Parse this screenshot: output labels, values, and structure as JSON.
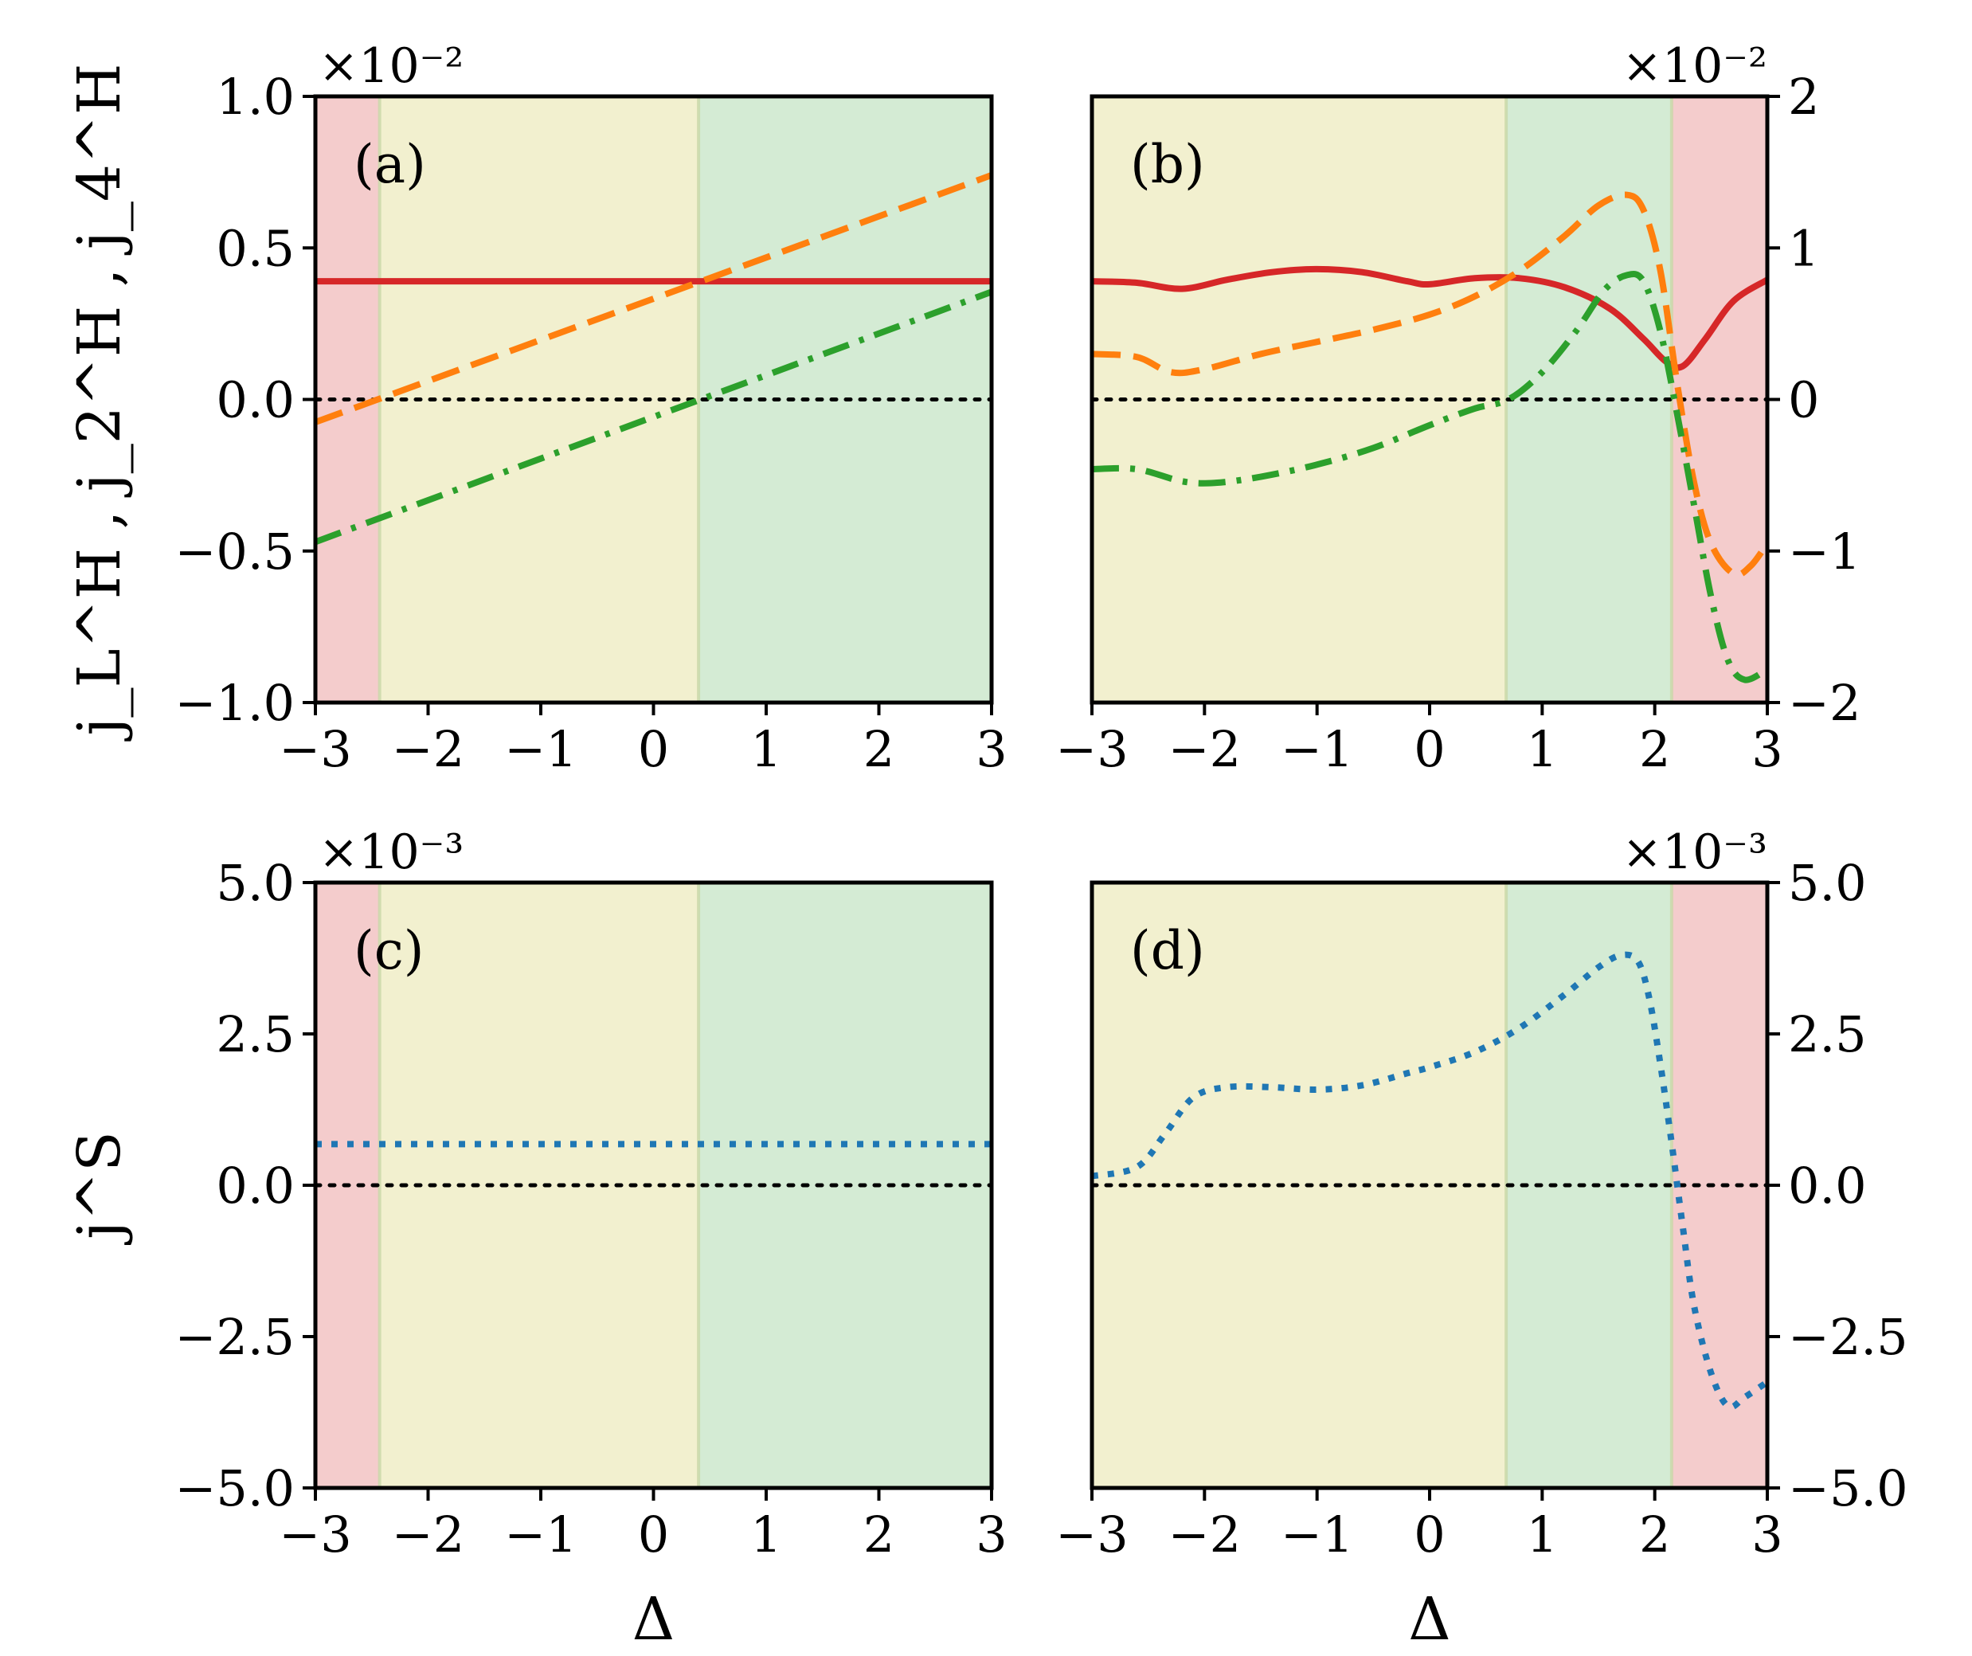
{
  "chart_data": [
    {
      "panel": "(a)",
      "type": "line",
      "exponent_label": "×10⁻²",
      "ylabel": "j_L^H , j_2^H , j_4^H",
      "xlabel": "",
      "xlim": [
        -3,
        3
      ],
      "ylim": [
        -1.0,
        1.0
      ],
      "x_ticks": [
        "−3",
        "−2",
        "−1",
        "0",
        "1",
        "2",
        "3"
      ],
      "y_ticks": [
        "−1.0",
        "−0.5",
        "0.0",
        "0.5",
        "1.0"
      ],
      "y_ticks_side": "left",
      "regions": [
        {
          "from": -3.0,
          "to": -2.43,
          "color": "#f4cccc"
        },
        {
          "from": -2.43,
          "to": 0.4,
          "color": "#f2f0cf"
        },
        {
          "from": 0.4,
          "to": 3.0,
          "color": "#d4ebd4"
        }
      ],
      "zero_line": true,
      "series": [
        {
          "name": "j_L^H",
          "color": "#d62728",
          "style": "solid",
          "x": [
            -3,
            3
          ],
          "values": [
            0.39,
            0.39
          ]
        },
        {
          "name": "j_2^H",
          "color": "#ff7f0e",
          "style": "dashed",
          "x": [
            -3,
            3
          ],
          "values": [
            -0.075,
            0.74
          ]
        },
        {
          "name": "j_4^H",
          "color": "#2ca02c",
          "style": "dashdot",
          "x": [
            -3,
            3
          ],
          "values": [
            -0.47,
            0.355
          ]
        }
      ]
    },
    {
      "panel": "(b)",
      "type": "line",
      "exponent_label": "×10⁻²",
      "ylabel": "",
      "xlabel": "",
      "xlim": [
        -3,
        3
      ],
      "ylim": [
        -2,
        2
      ],
      "x_ticks": [
        "−3",
        "−2",
        "−1",
        "0",
        "1",
        "2",
        "3"
      ],
      "y_ticks": [
        "−2",
        "−1",
        "0",
        "1",
        "2"
      ],
      "y_ticks_side": "right",
      "regions": [
        {
          "from": -3.0,
          "to": 0.68,
          "color": "#f2f0cf"
        },
        {
          "from": 0.68,
          "to": 2.15,
          "color": "#d4ebd4"
        },
        {
          "from": 2.15,
          "to": 3.0,
          "color": "#f4cccc"
        }
      ],
      "zero_line": true,
      "series": [
        {
          "name": "j_L^H",
          "color": "#d62728",
          "style": "solid",
          "x": [
            -3,
            -2.6,
            -2.2,
            -1.8,
            -1.4,
            -1.0,
            -0.6,
            -0.2,
            0.0,
            0.4,
            0.8,
            1.2,
            1.6,
            1.9,
            2.1,
            2.25,
            2.45,
            2.7,
            3.0
          ],
          "values": [
            0.78,
            0.77,
            0.73,
            0.79,
            0.84,
            0.86,
            0.84,
            0.78,
            0.76,
            0.8,
            0.8,
            0.74,
            0.6,
            0.4,
            0.25,
            0.22,
            0.4,
            0.65,
            0.79
          ]
        },
        {
          "name": "j_2^H",
          "color": "#ff7f0e",
          "style": "dashed",
          "x": [
            -3,
            -2.6,
            -2.3,
            -2.0,
            -1.5,
            -1.0,
            -0.5,
            0.0,
            0.4,
            0.8,
            1.2,
            1.5,
            1.75,
            1.9,
            2.05,
            2.2,
            2.35,
            2.5,
            2.7,
            2.85,
            3.0
          ],
          "values": [
            0.3,
            0.28,
            0.18,
            0.2,
            0.3,
            0.38,
            0.46,
            0.56,
            0.68,
            0.85,
            1.08,
            1.28,
            1.35,
            1.25,
            0.85,
            0.1,
            -0.55,
            -0.95,
            -1.15,
            -1.1,
            -0.95
          ]
        },
        {
          "name": "j_4^H",
          "color": "#2ca02c",
          "style": "dashdot",
          "x": [
            -3,
            -2.6,
            -2.2,
            -1.9,
            -1.5,
            -1.0,
            -0.5,
            0.0,
            0.4,
            0.7,
            1.0,
            1.3,
            1.55,
            1.75,
            1.9,
            2.05,
            2.2,
            2.35,
            2.5,
            2.65,
            2.8,
            3.0
          ],
          "values": [
            -0.46,
            -0.46,
            -0.54,
            -0.55,
            -0.51,
            -0.43,
            -0.32,
            -0.17,
            -0.06,
            0.0,
            0.18,
            0.45,
            0.72,
            0.82,
            0.78,
            0.45,
            -0.1,
            -0.7,
            -1.3,
            -1.72,
            -1.85,
            -1.78
          ]
        }
      ]
    },
    {
      "panel": "(c)",
      "type": "line",
      "exponent_label": "×10⁻³",
      "ylabel": "j^S",
      "xlabel": "Δ",
      "xlim": [
        -3,
        3
      ],
      "ylim": [
        -5.0,
        5.0
      ],
      "x_ticks": [
        "−3",
        "−2",
        "−1",
        "0",
        "1",
        "2",
        "3"
      ],
      "y_ticks": [
        "−5.0",
        "−2.5",
        "0.0",
        "2.5",
        "5.0"
      ],
      "y_ticks_side": "left",
      "regions": [
        {
          "from": -3.0,
          "to": -2.43,
          "color": "#f4cccc"
        },
        {
          "from": -2.43,
          "to": 0.4,
          "color": "#f2f0cf"
        },
        {
          "from": 0.4,
          "to": 3.0,
          "color": "#d4ebd4"
        }
      ],
      "zero_line": true,
      "series": [
        {
          "name": "j^S",
          "color": "#1f77b4",
          "style": "dotted",
          "x": [
            -3,
            3
          ],
          "values": [
            0.68,
            0.68
          ]
        }
      ]
    },
    {
      "panel": "(d)",
      "type": "line",
      "exponent_label": "×10⁻³",
      "ylabel": "",
      "xlabel": "Δ",
      "xlim": [
        -3,
        3
      ],
      "ylim": [
        -5.0,
        5.0
      ],
      "x_ticks": [
        "−3",
        "−2",
        "−1",
        "0",
        "1",
        "2",
        "3"
      ],
      "y_ticks": [
        "−5.0",
        "−2.5",
        "0.0",
        "2.5",
        "5.0"
      ],
      "y_ticks_side": "right",
      "regions": [
        {
          "from": -3.0,
          "to": 0.68,
          "color": "#f2f0cf"
        },
        {
          "from": 0.68,
          "to": 2.15,
          "color": "#d4ebd4"
        },
        {
          "from": 2.15,
          "to": 3.0,
          "color": "#f4cccc"
        }
      ],
      "zero_line": true,
      "series": [
        {
          "name": "j^S",
          "color": "#1f77b4",
          "style": "dotted",
          "x": [
            -3,
            -2.6,
            -2.35,
            -2.1,
            -1.8,
            -1.4,
            -1.0,
            -0.6,
            -0.2,
            0.0,
            0.4,
            0.8,
            1.2,
            1.5,
            1.7,
            1.85,
            1.95,
            2.05,
            2.15,
            2.25,
            2.35,
            2.5,
            2.65,
            2.8,
            3.0
          ],
          "values": [
            0.15,
            0.3,
            0.85,
            1.45,
            1.62,
            1.62,
            1.58,
            1.65,
            1.85,
            1.95,
            2.2,
            2.6,
            3.15,
            3.6,
            3.8,
            3.7,
            3.1,
            2.0,
            0.7,
            -0.7,
            -2.0,
            -3.1,
            -3.65,
            -3.5,
            -3.25
          ]
        }
      ]
    }
  ]
}
